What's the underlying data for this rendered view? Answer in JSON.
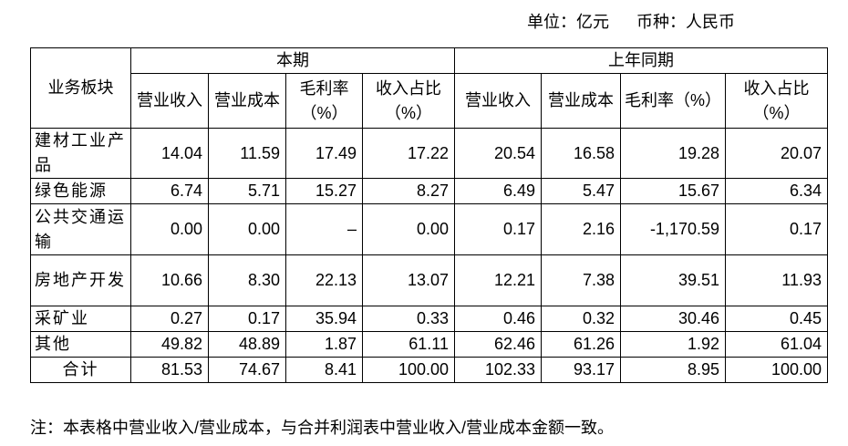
{
  "unit_line": {
    "unit": "单位：亿元",
    "currency": "币种：人民币"
  },
  "table": {
    "header": {
      "row_label": "业务板块",
      "groups": [
        "本期",
        "上年同期"
      ],
      "columns": [
        "营业收入",
        "营业成本",
        "毛利率（%）",
        "收入占比（%）",
        "营业收入",
        "营业成本",
        "毛利率（%）",
        "收入占比（%）"
      ]
    },
    "rows": [
      {
        "label": "建材工业产品",
        "cells": [
          "14.04",
          "11.59",
          "17.49",
          "17.22",
          "20.54",
          "16.58",
          "19.28",
          "20.07"
        ]
      },
      {
        "label": "绿色能源",
        "cells": [
          "6.74",
          "5.71",
          "15.27",
          "8.27",
          "6.49",
          "5.47",
          "15.67",
          "6.34"
        ]
      },
      {
        "label": "公共交通运输",
        "cells": [
          "0.00",
          "0.00",
          "–",
          "0.00",
          "0.17",
          "2.16",
          "-1,170.59",
          "0.17"
        ]
      },
      {
        "label": "房地产开发",
        "cells": [
          "10.66",
          "8.30",
          "22.13",
          "13.07",
          "12.21",
          "7.38",
          "39.51",
          "11.93"
        ]
      },
      {
        "label": "采矿业",
        "cells": [
          "0.27",
          "0.17",
          "35.94",
          "0.33",
          "0.46",
          "0.32",
          "30.46",
          "0.45"
        ]
      },
      {
        "label": "其他",
        "cells": [
          "49.82",
          "48.89",
          "1.87",
          "61.11",
          "62.46",
          "61.26",
          "1.92",
          "61.04"
        ]
      },
      {
        "label": "合计",
        "cells": [
          "81.53",
          "74.67",
          "8.41",
          "100.00",
          "102.33",
          "93.17",
          "8.95",
          "100.00"
        ]
      }
    ]
  },
  "note": "注：本表格中营业收入/营业成本，与合并利润表中营业收入/营业成本金额一致。"
}
